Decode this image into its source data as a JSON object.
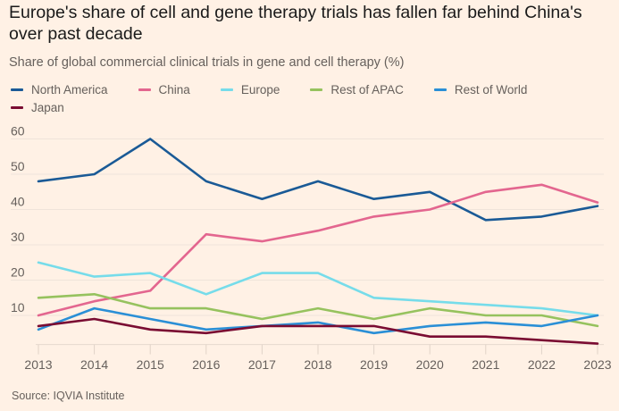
{
  "title": "Europe's share of cell and gene therapy trials has fallen far behind China's over past decade",
  "subtitle": "Share of global commercial clinical trials in gene and cell therapy (%)",
  "source": "Source: IQVIA Institute",
  "legend": {
    "row1": [
      {
        "label": "North America",
        "color": "#1a5a96"
      },
      {
        "label": "China",
        "color": "#e3668f"
      },
      {
        "label": "Europe",
        "color": "#76dcea"
      },
      {
        "label": "Rest of APAC",
        "color": "#96c25e"
      },
      {
        "label": "Rest of World",
        "color": "#2a8fd6"
      }
    ],
    "row2": [
      {
        "label": "Japan",
        "color": "#7a0c32"
      }
    ]
  },
  "chart_data": {
    "type": "line",
    "title": "Europe's share of cell and gene therapy trials has fallen far behind China's over past decade",
    "subtitle": "Share of global commercial clinical trials in gene and cell therapy (%)",
    "xlabel": "",
    "ylabel": "",
    "x": [
      2013,
      2014,
      2015,
      2016,
      2017,
      2018,
      2019,
      2020,
      2021,
      2022,
      2023
    ],
    "x_tick_labels": [
      "2013",
      "2014",
      "2015",
      "2016",
      "2017",
      "2018",
      "2019",
      "2020",
      "2021",
      "2022",
      "2023"
    ],
    "y_ticks": [
      10,
      20,
      30,
      40,
      50,
      60
    ],
    "y_tick_labels": [
      "10",
      "20",
      "30",
      "40",
      "50",
      "60"
    ],
    "ylim": [
      2,
      62
    ],
    "grid": true,
    "legend_position": "top",
    "series": [
      {
        "name": "North America",
        "color": "#1a5a96",
        "values": [
          48,
          50,
          60,
          48,
          43,
          48,
          43,
          45,
          37,
          38,
          41
        ]
      },
      {
        "name": "China",
        "color": "#e3668f",
        "values": [
          10,
          14,
          17,
          33,
          31,
          34,
          38,
          40,
          45,
          47,
          42
        ]
      },
      {
        "name": "Europe",
        "color": "#76dcea",
        "values": [
          25,
          21,
          22,
          16,
          22,
          22,
          15,
          14,
          13,
          12,
          10
        ]
      },
      {
        "name": "Rest of APAC",
        "color": "#96c25e",
        "values": [
          15,
          16,
          12,
          12,
          9,
          12,
          9,
          12,
          10,
          10,
          7
        ]
      },
      {
        "name": "Rest of World",
        "color": "#2a8fd6",
        "values": [
          6,
          12,
          9,
          6,
          7,
          8,
          5,
          7,
          8,
          7,
          10
        ]
      },
      {
        "name": "Japan",
        "color": "#7a0c32",
        "values": [
          7,
          9,
          6,
          5,
          7,
          7,
          7,
          4,
          4,
          3,
          2
        ]
      }
    ],
    "source": "Source: IQVIA Institute"
  }
}
